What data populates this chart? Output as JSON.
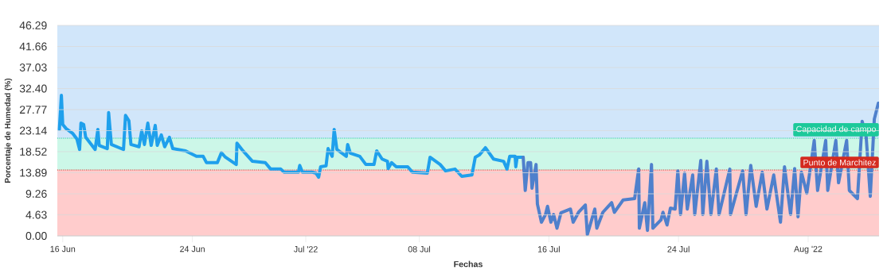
{
  "chart_data": {
    "type": "line",
    "xlabel": "Fechas",
    "ylabel": "Porcentaje de Humedad (%)",
    "xlim": [
      "2022-06-15T16:00",
      "2022-08-05T09:00"
    ],
    "xticks": [
      {
        "value": "2022-06-16",
        "label": "16 Jun"
      },
      {
        "value": "2022-06-24",
        "label": "24 Jun"
      },
      {
        "value": "2022-07-01",
        "label": "Jul '22"
      },
      {
        "value": "2022-07-08",
        "label": "08 Jul"
      },
      {
        "value": "2022-07-16",
        "label": "16 Jul"
      },
      {
        "value": "2022-07-24",
        "label": "24 Jul"
      },
      {
        "value": "2022-08-01",
        "label": "Aug '22"
      }
    ],
    "ylim": [
      0,
      46.29
    ],
    "yticks": [
      {
        "value": 0,
        "label": "0.00"
      },
      4.63,
      9.26,
      13.89,
      18.52,
      23.14,
      27.77,
      {
        "value": 32.4,
        "label": "32.40"
      },
      37.03,
      41.66,
      46.29
    ],
    "grid": "y",
    "bands": [
      {
        "axis": "y",
        "from": 21.5,
        "to": 46.29,
        "color": "#d1e6fa"
      },
      {
        "axis": "y",
        "from": 14.5,
        "to": 21.5,
        "color": "#ccf7e8"
      },
      {
        "axis": "y",
        "from": 0,
        "to": 14.5,
        "color": "#ffcccc"
      }
    ],
    "ref_lines": [
      {
        "axis": "y",
        "value": 21.5,
        "label": "Capacidad de campo",
        "color": "#1cc99a",
        "line_style": "dotted"
      },
      {
        "axis": "y",
        "value": 14.5,
        "label": "Punto de Marchitez",
        "color": "#d42a1f",
        "line_style": "dotted"
      }
    ],
    "series": [
      {
        "color": "#1fa0ec",
        "x": [
          "2022-06-15T19:00",
          "2022-06-15T22:00",
          "2022-06-16T00:00",
          "2022-06-16T05:00",
          "2022-06-16T15:00",
          "2022-06-16T21:00",
          "2022-06-17T01:00",
          "2022-06-17T03:00",
          "2022-06-17T07:00",
          "2022-06-17T10:00",
          "2022-06-18T00:00",
          "2022-06-18T04:00",
          "2022-06-18T06:00",
          "2022-06-18T18:00",
          "2022-06-18T20:00",
          "2022-06-19T00:00",
          "2022-06-19T18:00",
          "2022-06-19T21:00",
          "2022-06-20T02:00",
          "2022-06-20T05:00",
          "2022-06-20T17:00",
          "2022-06-20T21:00",
          "2022-06-21T01:00",
          "2022-06-21T06:00",
          "2022-06-21T11:00",
          "2022-06-21T17:00",
          "2022-06-21T20:00",
          "2022-06-22T02:00",
          "2022-06-22T07:00",
          "2022-06-22T14:00",
          "2022-06-22T19:00",
          "2022-06-23T14:00",
          "2022-06-24T06:00",
          "2022-06-24T16:00",
          "2022-06-24T21:00",
          "2022-06-25T13:00",
          "2022-06-25T19:00",
          "2022-06-26T01:00",
          "2022-06-26T17:00",
          "2022-06-26T18:00",
          "2022-06-27T03:00",
          "2022-06-27T17:00",
          "2022-06-28T12:00",
          "2022-06-28T20:00",
          "2022-06-29T11:00",
          "2022-06-29T16:00",
          "2022-06-30T13:00",
          "2022-06-30T15:00",
          "2022-06-30T19:00",
          "2022-07-01T10:00",
          "2022-07-01T15:00",
          "2022-07-01T19:00",
          "2022-07-01T22:00",
          "2022-07-02T06:00",
          "2022-07-02T09:00",
          "2022-07-02T15:00",
          "2022-07-02T18:00",
          "2022-07-02T22:00",
          "2022-07-03T12:00",
          "2022-07-03T14:00",
          "2022-07-03T18:00",
          "2022-07-04T08:00",
          "2022-07-04T17:00",
          "2022-07-05T05:00",
          "2022-07-05T09:00",
          "2022-07-05T17:00",
          "2022-07-06T01:00",
          "2022-07-06T02:00",
          "2022-07-06T07:00",
          "2022-07-06T14:00",
          "2022-07-07T07:00",
          "2022-07-07T14:00",
          "2022-07-08T12:00",
          "2022-07-08T16:00",
          "2022-07-09T07:00",
          "2022-07-09T15:00",
          "2022-07-10T05:00",
          "2022-07-10T15:00",
          "2022-07-11T06:00",
          "2022-07-11T11:00",
          "2022-07-11T17:00",
          "2022-07-12T02:00",
          "2022-07-12T14:00",
          "2022-07-13T05:00",
          "2022-07-13T10:00",
          "2022-07-13T14:00",
          "2022-07-13T22:00",
          "2022-07-13T23:00",
          "2022-07-14T01:00",
          "2022-07-14T10:00"
        ],
        "values": [
          23.4,
          30.9,
          24.5,
          23.6,
          22.5,
          21.3,
          19.0,
          24.8,
          24.5,
          21.7,
          19.0,
          23.4,
          19.9,
          19.2,
          27.1,
          20.1,
          19.0,
          26.5,
          25.3,
          20.1,
          19.6,
          23.1,
          20.1,
          24.8,
          19.9,
          24.3,
          19.9,
          22.2,
          19.6,
          21.7,
          19.2,
          18.7,
          17.5,
          17.5,
          16.1,
          16.1,
          18.3,
          17.3,
          15.7,
          20.4,
          18.7,
          16.4,
          16.1,
          14.7,
          14.7,
          14.0,
          14.0,
          15.5,
          14.0,
          14.0,
          13.8,
          12.9,
          15.2,
          15.4,
          19.2,
          17.5,
          23.4,
          19.0,
          17.5,
          20.1,
          18.2,
          17.5,
          15.7,
          15.7,
          18.7,
          16.9,
          16.4,
          14.8,
          16.1,
          15.2,
          15.2,
          14.0,
          13.8,
          17.3,
          15.7,
          14.3,
          14.7,
          13.1,
          13.4,
          17.3,
          17.8,
          19.4,
          16.9,
          16.4,
          14.7,
          17.5,
          17.5,
          15.2,
          17.3,
          17.3
        ]
      },
      {
        "color": "#4f80cc",
        "x": [
          "2022-07-14T10:00",
          "2022-07-14T13:00",
          "2022-07-14T17:00",
          "2022-07-14T21:00",
          "2022-07-14T23:00",
          "2022-07-15T05:00",
          "2022-07-15T07:00",
          "2022-07-15T13:00",
          "2022-07-15T19:00",
          "2022-07-15T22:00",
          "2022-07-16T03:00",
          "2022-07-16T07:00",
          "2022-07-16T12:00",
          "2022-07-16T18:00",
          "2022-07-17T08:00",
          "2022-07-17T12:00",
          "2022-07-17T20:00",
          "2022-07-18T06:00",
          "2022-07-18T09:00",
          "2022-07-18T20:00",
          "2022-07-18T23:00",
          "2022-07-19T08:00",
          "2022-07-19T21:00",
          "2022-07-20T01:00",
          "2022-07-20T14:00",
          "2022-07-21T07:00",
          "2022-07-21T13:00",
          "2022-07-21T14:00",
          "2022-07-21T22:00",
          "2022-07-22T02:00",
          "2022-07-22T08:00",
          "2022-07-22T10:00",
          "2022-07-22T22:00",
          "2022-07-23T01:00",
          "2022-07-23T07:00",
          "2022-07-23T12:00",
          "2022-07-23T19:00",
          "2022-07-23T23:00",
          "2022-07-24T03:00",
          "2022-07-24T09:00",
          "2022-07-24T13:00",
          "2022-07-24T21:00",
          "2022-07-25T00:00",
          "2022-07-25T09:00",
          "2022-07-25T12:00",
          "2022-07-25T18:00",
          "2022-07-26T00:00",
          "2022-07-26T08:00",
          "2022-07-26T12:00",
          "2022-07-27T04:00",
          "2022-07-27T05:00",
          "2022-07-27T23:00",
          "2022-07-28T04:00",
          "2022-07-28T11:00",
          "2022-07-28T19:00",
          "2022-07-29T04:00",
          "2022-07-29T11:00",
          "2022-07-29T21:00",
          "2022-07-30T07:00",
          "2022-07-30T13:00",
          "2022-07-30T22:00",
          "2022-07-31T04:00",
          "2022-07-31T09:00",
          "2022-07-31T14:00",
          "2022-07-31T22:00",
          "2022-08-01T09:00",
          "2022-08-01T14:00",
          "2022-08-02T02:00",
          "2022-08-02T05:00",
          "2022-08-02T17:00",
          "2022-08-02T21:00",
          "2022-08-03T09:00",
          "2022-08-03T13:00",
          "2022-08-04T01:00",
          "2022-08-04T08:00",
          "2022-08-04T14:00",
          "2022-08-04T20:00",
          "2022-08-05T02:00",
          "2022-08-05T08:00"
        ],
        "values": [
          17.3,
          10.0,
          16.1,
          16.1,
          10.5,
          15.7,
          7.0,
          3.0,
          4.7,
          6.5,
          3.0,
          4.7,
          1.7,
          5.1,
          5.9,
          3.0,
          5.2,
          6.8,
          0.3,
          5.9,
          1.7,
          5.2,
          7.3,
          5.2,
          7.9,
          8.2,
          14.7,
          1.7,
          7.3,
          1.2,
          15.7,
          1.7,
          3.5,
          5.2,
          2.4,
          6.1,
          5.9,
          14.3,
          4.7,
          13.8,
          5.9,
          13.4,
          4.7,
          16.6,
          4.7,
          16.4,
          4.7,
          14.7,
          4.7,
          14.7,
          4.7,
          14.3,
          4.7,
          15.5,
          6.5,
          14.0,
          5.9,
          13.4,
          3.0,
          15.2,
          4.7,
          14.8,
          4.2,
          14.0,
          9.4,
          21.0,
          10.0,
          21.0,
          10.0,
          21.0,
          11.7,
          21.0,
          10.0,
          8.2,
          25.2,
          21.7,
          8.7,
          25.7,
          29.2
        ]
      }
    ]
  }
}
